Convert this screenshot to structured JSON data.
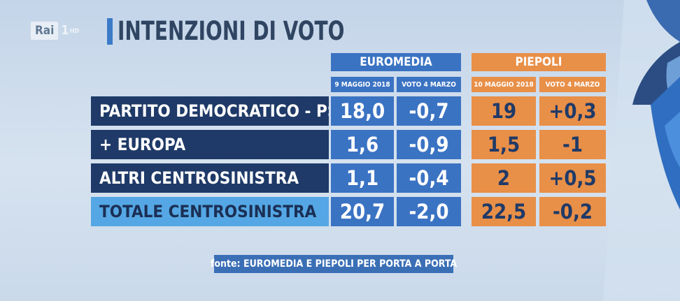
{
  "broadcaster": {
    "logo": "Rai",
    "channel_number": "1",
    "hd_label": "HD"
  },
  "title": "INTENZIONI DI VOTO",
  "source_note": "fonte: EUROMEDIA E PIEPOLI PER PORTA A PORTA",
  "colors": {
    "euromedia": "#3b73c3",
    "piepoli": "#e88f48",
    "row_dark": "#1f3a68",
    "row_total": "#54a7e4"
  },
  "chart_data": {
    "type": "table",
    "title": "INTENZIONI DI VOTO",
    "pollsters": [
      {
        "name": "EUROMEDIA",
        "columns": [
          "9 MAGGIO 2018",
          "VOTO 4 MARZO"
        ]
      },
      {
        "name": "PIEPOLI",
        "columns": [
          "10 MAGGIO 2018",
          "VOTO 4 MARZO"
        ]
      }
    ],
    "rows": [
      {
        "label": "PARTITO DEMOCRATICO - PSE",
        "values": [
          "18,0",
          "-0,7",
          "19",
          "+0,3"
        ]
      },
      {
        "label": "+ EUROPA",
        "values": [
          "1,6",
          "-0,9",
          "1,5",
          "-1"
        ]
      },
      {
        "label": "ALTRI CENTROSINISTRA",
        "values": [
          "1,1",
          "-0,4",
          "2",
          "+0,5"
        ]
      },
      {
        "label": "TOTALE CENTROSINISTRA",
        "values": [
          "20,7",
          "-2,0",
          "22,5",
          "-0,2"
        ]
      }
    ]
  }
}
